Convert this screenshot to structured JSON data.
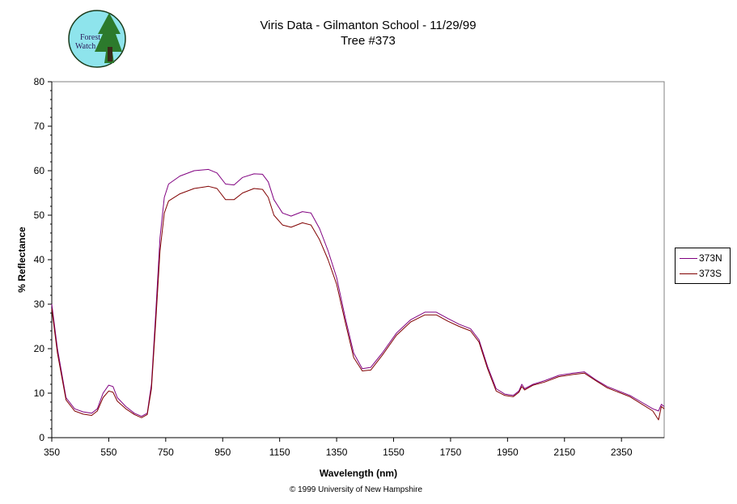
{
  "logo": {
    "line1": "Forest",
    "line2": "Watch"
  },
  "title": {
    "line1": "Viris Data - Gilmanton School - 11/29/99",
    "line2": "Tree #373"
  },
  "copyright": "© 1999 University of New Hampshire",
  "chart_data": {
    "type": "line",
    "xlabel": "Wavelength (nm)",
    "ylabel": "% Reflectance",
    "xlim": [
      350,
      2500
    ],
    "ylim": [
      0,
      80
    ],
    "xticks": [
      350,
      550,
      750,
      950,
      1150,
      1350,
      1550,
      1750,
      1950,
      2150,
      2350
    ],
    "yticks": [
      0,
      10,
      20,
      30,
      40,
      50,
      60,
      70,
      80
    ],
    "grid": false,
    "legend_position": "right",
    "series": [
      {
        "name": "373N",
        "color": "#800080",
        "points": [
          [
            350,
            30
          ],
          [
            370,
            20
          ],
          [
            400,
            9
          ],
          [
            430,
            6.5
          ],
          [
            460,
            5.8
          ],
          [
            490,
            5.5
          ],
          [
            510,
            6.5
          ],
          [
            530,
            10
          ],
          [
            550,
            11.8
          ],
          [
            565,
            11.5
          ],
          [
            580,
            9
          ],
          [
            610,
            7
          ],
          [
            640,
            5.5
          ],
          [
            665,
            4.8
          ],
          [
            685,
            5.5
          ],
          [
            700,
            12
          ],
          [
            715,
            28
          ],
          [
            730,
            45
          ],
          [
            745,
            54
          ],
          [
            760,
            57
          ],
          [
            800,
            58.8
          ],
          [
            850,
            60
          ],
          [
            900,
            60.3
          ],
          [
            930,
            59.5
          ],
          [
            960,
            57
          ],
          [
            990,
            56.8
          ],
          [
            1020,
            58.5
          ],
          [
            1060,
            59.3
          ],
          [
            1090,
            59.2
          ],
          [
            1110,
            57.5
          ],
          [
            1130,
            53.5
          ],
          [
            1160,
            50.5
          ],
          [
            1190,
            49.8
          ],
          [
            1230,
            50.8
          ],
          [
            1260,
            50.5
          ],
          [
            1290,
            47
          ],
          [
            1320,
            42
          ],
          [
            1350,
            36
          ],
          [
            1380,
            27
          ],
          [
            1410,
            19
          ],
          [
            1440,
            15.5
          ],
          [
            1470,
            15.8
          ],
          [
            1510,
            19
          ],
          [
            1560,
            23.5
          ],
          [
            1610,
            26.5
          ],
          [
            1660,
            28.2
          ],
          [
            1700,
            28.2
          ],
          [
            1740,
            26.8
          ],
          [
            1780,
            25.5
          ],
          [
            1820,
            24.5
          ],
          [
            1850,
            22
          ],
          [
            1880,
            16
          ],
          [
            1910,
            11
          ],
          [
            1940,
            9.8
          ],
          [
            1970,
            9.5
          ],
          [
            1990,
            10.5
          ],
          [
            2000,
            12
          ],
          [
            2010,
            11
          ],
          [
            2040,
            12
          ],
          [
            2080,
            12.8
          ],
          [
            2130,
            14
          ],
          [
            2180,
            14.5
          ],
          [
            2220,
            14.8
          ],
          [
            2260,
            13
          ],
          [
            2300,
            11.5
          ],
          [
            2340,
            10.5
          ],
          [
            2380,
            9.5
          ],
          [
            2420,
            8
          ],
          [
            2460,
            6.5
          ],
          [
            2480,
            6
          ],
          [
            2490,
            7.5
          ],
          [
            2500,
            7
          ]
        ]
      },
      {
        "name": "373S",
        "color": "#800000",
        "points": [
          [
            350,
            29
          ],
          [
            370,
            19
          ],
          [
            400,
            8.5
          ],
          [
            430,
            6
          ],
          [
            460,
            5.3
          ],
          [
            490,
            5
          ],
          [
            510,
            6
          ],
          [
            530,
            9
          ],
          [
            550,
            10.5
          ],
          [
            565,
            10.2
          ],
          [
            580,
            8.2
          ],
          [
            610,
            6.5
          ],
          [
            640,
            5.2
          ],
          [
            665,
            4.5
          ],
          [
            685,
            5.2
          ],
          [
            700,
            11
          ],
          [
            715,
            26
          ],
          [
            730,
            42
          ],
          [
            745,
            50.5
          ],
          [
            760,
            53.2
          ],
          [
            800,
            54.8
          ],
          [
            850,
            56
          ],
          [
            900,
            56.5
          ],
          [
            930,
            56
          ],
          [
            960,
            53.5
          ],
          [
            990,
            53.5
          ],
          [
            1020,
            55
          ],
          [
            1060,
            56
          ],
          [
            1090,
            55.8
          ],
          [
            1110,
            54
          ],
          [
            1130,
            50
          ],
          [
            1160,
            47.8
          ],
          [
            1190,
            47.3
          ],
          [
            1230,
            48.3
          ],
          [
            1260,
            47.8
          ],
          [
            1290,
            44.5
          ],
          [
            1320,
            40
          ],
          [
            1350,
            34.5
          ],
          [
            1380,
            26
          ],
          [
            1410,
            18
          ],
          [
            1440,
            15
          ],
          [
            1470,
            15.2
          ],
          [
            1510,
            18.5
          ],
          [
            1560,
            23
          ],
          [
            1610,
            26
          ],
          [
            1660,
            27.6
          ],
          [
            1700,
            27.6
          ],
          [
            1740,
            26.2
          ],
          [
            1780,
            25
          ],
          [
            1820,
            24
          ],
          [
            1850,
            21.5
          ],
          [
            1880,
            15.5
          ],
          [
            1910,
            10.5
          ],
          [
            1940,
            9.5
          ],
          [
            1970,
            9.2
          ],
          [
            1990,
            10.2
          ],
          [
            2000,
            11.5
          ],
          [
            2010,
            10.7
          ],
          [
            2040,
            11.8
          ],
          [
            2080,
            12.5
          ],
          [
            2130,
            13.7
          ],
          [
            2180,
            14.2
          ],
          [
            2220,
            14.5
          ],
          [
            2260,
            12.8
          ],
          [
            2300,
            11.2
          ],
          [
            2340,
            10.2
          ],
          [
            2380,
            9.2
          ],
          [
            2420,
            7.6
          ],
          [
            2460,
            6
          ],
          [
            2480,
            4
          ],
          [
            2490,
            7
          ],
          [
            2500,
            6.5
          ]
        ]
      }
    ]
  }
}
